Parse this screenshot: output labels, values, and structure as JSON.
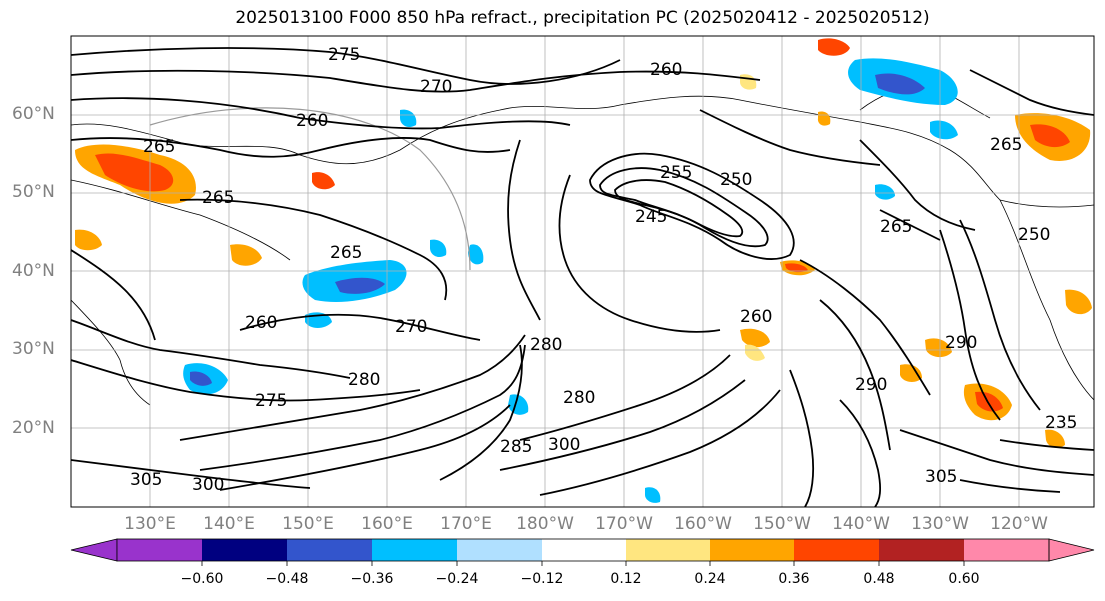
{
  "title": "2025013100 F000 850 hPa refract., precipitation PC (2025020412 - 2025020512)",
  "map": {
    "lat_ticks": [
      "60°N",
      "50°N",
      "40°N",
      "30°N",
      "20°N"
    ],
    "lon_ticks": [
      "130°E",
      "140°E",
      "150°E",
      "160°E",
      "170°E",
      "180°W",
      "170°W",
      "160°W",
      "150°W",
      "140°W",
      "130°W",
      "120°W"
    ],
    "contour_labels": [
      "275",
      "270",
      "260",
      "265",
      "260",
      "265",
      "255",
      "250",
      "245",
      "265",
      "265",
      "260",
      "270",
      "260",
      "280",
      "275",
      "280",
      "280",
      "285",
      "300",
      "305",
      "300",
      "305",
      "290",
      "290",
      "250",
      "265",
      "235"
    ]
  },
  "colorbar": {
    "tick_labels": [
      "−0.60",
      "−0.48",
      "−0.36",
      "−0.24",
      "−0.12",
      "0.12",
      "0.24",
      "0.36",
      "0.48",
      "0.60"
    ],
    "colors": [
      "#9933cc",
      "#000080",
      "#3355cc",
      "#00bfff",
      "#b0e0ff",
      "#ffffff",
      "#ffe680",
      "#ffa500",
      "#ff4500",
      "#b22222",
      "#ff88aa"
    ]
  }
}
